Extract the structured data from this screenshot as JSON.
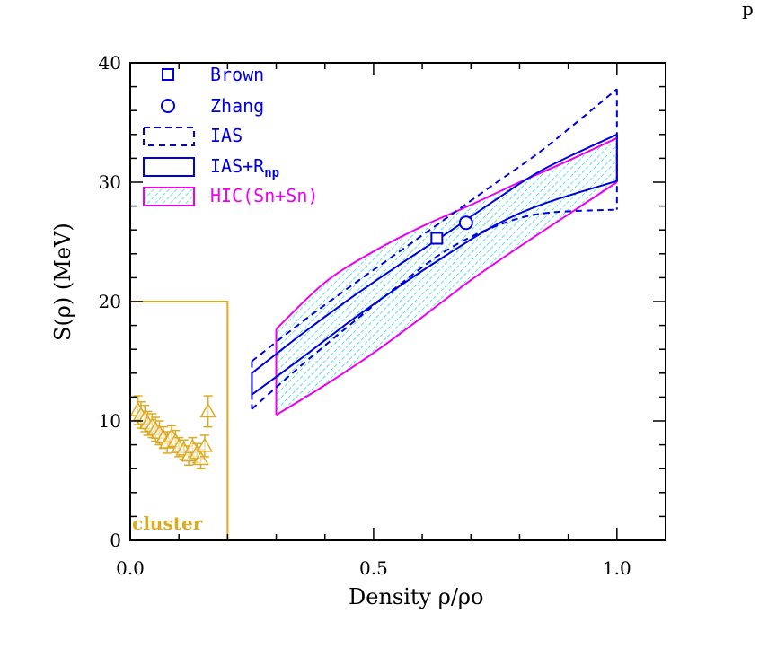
{
  "page_number": "p",
  "chart_data": {
    "type": "area",
    "xlabel": "Density ρ/ρo",
    "ylabel": "S(ρ)  (MeV)",
    "xlim": [
      0.0,
      1.1
    ],
    "ylim": [
      0,
      40
    ],
    "x_ticks": [
      0.0,
      0.5,
      1.0
    ],
    "x_tick_labels": [
      "0.0",
      "0.5",
      "1.0"
    ],
    "y_ticks": [
      0,
      10,
      20,
      30,
      40
    ],
    "y_tick_labels": [
      "0",
      "10",
      "20",
      "30",
      "40"
    ],
    "grid": false,
    "legend_position": "top-left",
    "legend": [
      {
        "label": "Brown",
        "marker": "square",
        "color": "#0000dd"
      },
      {
        "label": "Zhang",
        "marker": "circle",
        "color": "#0000dd"
      },
      {
        "label": "IAS",
        "style": "dashed-band",
        "color": "#0000dd"
      },
      {
        "label": "IAS+R",
        "subscript": "np",
        "style": "solid-band",
        "color": "#0000dd"
      },
      {
        "label": "HIC(Sn+Sn)",
        "style": "hatched-band",
        "color": "#ee00ee",
        "fill": "#00ccdd"
      }
    ],
    "colors": {
      "ias": "#0000dd",
      "hic_edge": "#ee00ee",
      "hic_fill": "#00ccdd",
      "cluster": "#ddaa22"
    },
    "series": [
      {
        "name": "HIC(Sn+Sn)",
        "kind": "band",
        "x": [
          0.3,
          0.4,
          0.5,
          0.6,
          0.7,
          0.8,
          0.9,
          1.0
        ],
        "upper": [
          17.7,
          21.6,
          24.2,
          26.3,
          28.1,
          30.0,
          31.8,
          33.7
        ],
        "lower": [
          10.5,
          13.0,
          15.7,
          18.7,
          21.8,
          24.6,
          27.3,
          30.0
        ]
      },
      {
        "name": "IAS",
        "kind": "band",
        "x": [
          0.25,
          0.35,
          0.45,
          0.55,
          0.65,
          0.75,
          0.85,
          1.0
        ],
        "upper": [
          15.0,
          18.2,
          21.2,
          24.1,
          27.0,
          29.9,
          32.8,
          37.8
        ],
        "lower": [
          11.0,
          14.6,
          18.0,
          21.3,
          24.3,
          26.3,
          27.4,
          27.7
        ]
      },
      {
        "name": "IAS+R",
        "kind": "band",
        "x": [
          0.25,
          0.35,
          0.45,
          0.55,
          0.65,
          0.75,
          0.85,
          1.0
        ],
        "upper": [
          14.0,
          17.2,
          20.2,
          23.0,
          25.7,
          28.5,
          31.1,
          34.0
        ],
        "lower": [
          12.2,
          15.2,
          18.3,
          21.2,
          23.9,
          26.4,
          28.2,
          30.1
        ]
      },
      {
        "name": "Brown",
        "kind": "point",
        "x": [
          0.63
        ],
        "y": [
          25.3
        ]
      },
      {
        "name": "Zhang",
        "kind": "point",
        "x": [
          0.69
        ],
        "y": [
          26.6
        ]
      },
      {
        "name": "cluster",
        "kind": "scatter",
        "x": [
          0.016,
          0.022,
          0.03,
          0.036,
          0.045,
          0.052,
          0.06,
          0.068,
          0.076,
          0.085,
          0.093,
          0.1,
          0.11,
          0.12,
          0.128,
          0.137,
          0.145,
          0.153,
          0.16
        ],
        "y": [
          10.9,
          10.5,
          10.2,
          9.8,
          9.6,
          9.3,
          9.0,
          8.6,
          8.2,
          8.7,
          8.3,
          7.8,
          7.6,
          7.1,
          7.8,
          7.3,
          6.8,
          7.9,
          10.8
        ],
        "yerr": [
          1.2,
          1.1,
          1.1,
          1.0,
          1.0,
          1.0,
          1.0,
          0.9,
          0.9,
          0.9,
          0.9,
          0.8,
          0.8,
          0.8,
          0.8,
          0.8,
          0.8,
          0.9,
          1.3
        ]
      }
    ],
    "annotations": [
      {
        "text": "cluster",
        "color": "#ddaa22"
      }
    ],
    "cluster_region": {
      "xmin": 0.0,
      "xmax": 0.2,
      "ymin": 0,
      "ymax": 20
    }
  }
}
